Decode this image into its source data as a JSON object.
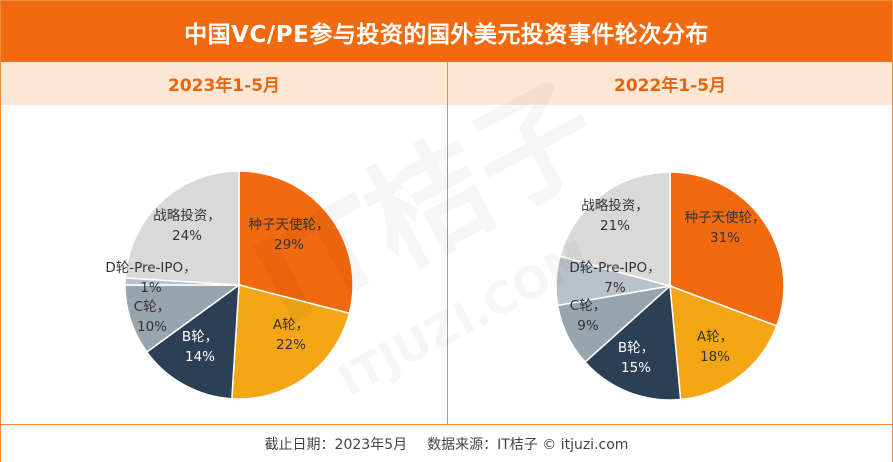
{
  "title": "中国VC/PE参与投资的国外美元投资事件轮次分布",
  "footer": {
    "cutoff": "截止日期：2023年5月",
    "source": "数据来源：IT桔子 © itjuzi.com"
  },
  "watermark": {
    "main": "IT桔子",
    "sub": "ITJUZI.COM"
  },
  "colors": {
    "accent": "#f26a0f",
    "subhead_bg": "#fde6d4",
    "slices": {
      "种子天使轮": "#f26a0f",
      "A轮": "#f4a614",
      "B轮": "#2b3f55",
      "C轮": "#98a4ae",
      "D轮-Pre-IPO": "#b9c2c9",
      "战略投资": "#d9d9d9"
    }
  },
  "chart_data": [
    {
      "type": "pie",
      "title": "2023年1-5月",
      "labels": [
        "种子天使轮",
        "A轮",
        "B轮",
        "C轮",
        "D轮-Pre-IPO",
        "战略投资"
      ],
      "values": [
        29,
        22,
        14,
        10,
        1,
        24
      ],
      "display": [
        "29%",
        "22%",
        "14%",
        "10%",
        "1%",
        "24%"
      ]
    },
    {
      "type": "pie",
      "title": "2022年1-5月",
      "labels": [
        "种子天使轮",
        "A轮",
        "B轮",
        "C轮",
        "D轮-Pre-IPO",
        "战略投资"
      ],
      "values": [
        31,
        18,
        15,
        9,
        7,
        21
      ],
      "display": [
        "31%",
        "18%",
        "15%",
        "9%",
        "7%",
        "21%"
      ]
    }
  ]
}
